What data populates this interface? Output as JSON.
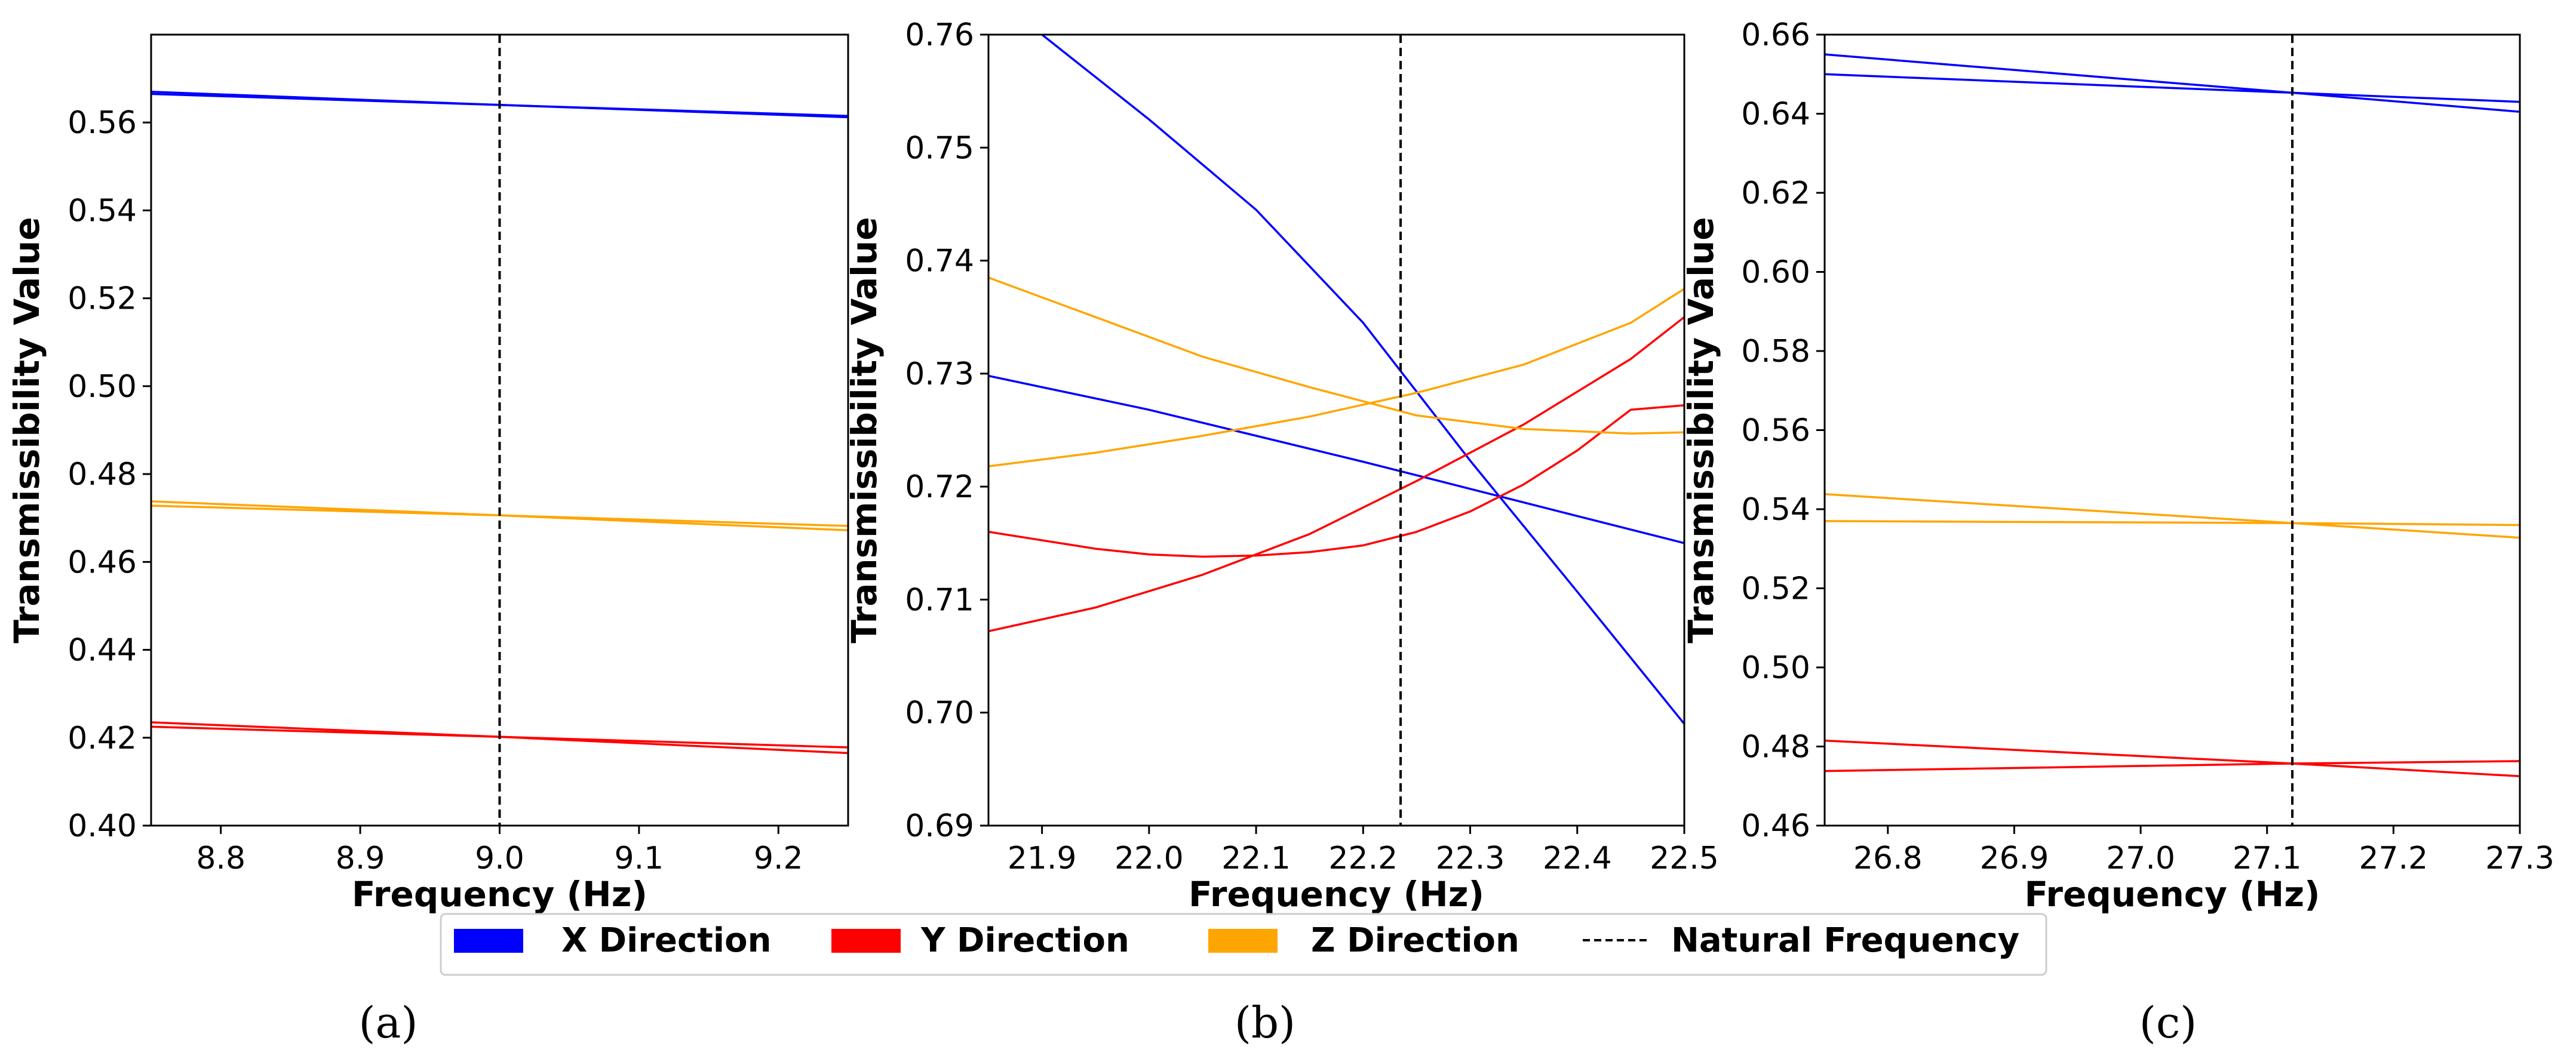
{
  "colors": {
    "x_direction": "#0000ff",
    "y_direction": "#ff0000",
    "z_direction": "#ffa500",
    "natural_frequency": "#000000"
  },
  "legend": {
    "items": [
      {
        "label": "X Direction",
        "color": "#0000ff",
        "style": "patch"
      },
      {
        "label": "Y Direction",
        "color": "#ff0000",
        "style": "patch"
      },
      {
        "label": "Z Direction",
        "color": "#ffa500",
        "style": "patch"
      },
      {
        "label": "Natural Frequency",
        "color": "#000000",
        "style": "dashed"
      }
    ]
  },
  "chart_data": [
    {
      "type": "line",
      "panel_label": "(a)",
      "xlabel": "Frequency (Hz)",
      "ylabel": "Transmissibility Value",
      "xlim": [
        8.75,
        9.25
      ],
      "ylim": [
        0.4,
        0.58
      ],
      "xticks": [
        8.8,
        8.9,
        9.0,
        9.1,
        9.2
      ],
      "xtick_labels": [
        "8.8",
        "8.9",
        "9.0",
        "9.1",
        "9.2"
      ],
      "yticks": [
        0.4,
        0.42,
        0.44,
        0.46,
        0.48,
        0.5,
        0.52,
        0.54,
        0.56
      ],
      "ytick_labels": [
        "0.40",
        "0.42",
        "0.44",
        "0.46",
        "0.48",
        "0.50",
        "0.52",
        "0.54",
        "0.56"
      ],
      "natural_frequency": 9.0,
      "series": [
        {
          "name": "X Direction",
          "color": "#0000ff",
          "x": [
            8.75,
            9.0,
            9.25
          ],
          "values": [
            0.5665,
            0.564,
            0.5612
          ]
        },
        {
          "name": "X Direction",
          "color": "#0000ff",
          "x": [
            8.75,
            9.0,
            9.25
          ],
          "values": [
            0.567,
            0.564,
            0.5615
          ]
        },
        {
          "name": "Y Direction",
          "color": "#ff0000",
          "x": [
            8.75,
            9.0,
            9.25
          ],
          "values": [
            0.4225,
            0.4202,
            0.4178
          ]
        },
        {
          "name": "Y Direction",
          "color": "#ff0000",
          "x": [
            8.75,
            9.0,
            9.25
          ],
          "values": [
            0.4235,
            0.4202,
            0.4165
          ]
        },
        {
          "name": "Z Direction",
          "color": "#ffa500",
          "x": [
            8.75,
            9.0,
            9.25
          ],
          "values": [
            0.4728,
            0.4706,
            0.4682
          ]
        },
        {
          "name": "Z Direction",
          "color": "#ffa500",
          "x": [
            8.75,
            9.0,
            9.25
          ],
          "values": [
            0.4738,
            0.4706,
            0.4672
          ]
        }
      ]
    },
    {
      "type": "line",
      "panel_label": "(b)",
      "xlabel": "Frequency (Hz)",
      "ylabel": "Transmissibility Value",
      "xlim": [
        21.85,
        22.5
      ],
      "ylim": [
        0.69,
        0.76
      ],
      "xticks": [
        21.9,
        22.0,
        22.1,
        22.2,
        22.3,
        22.4,
        22.5
      ],
      "xtick_labels": [
        "21.9",
        "22.0",
        "22.1",
        "22.2",
        "22.3",
        "22.4",
        "22.5"
      ],
      "yticks": [
        0.69,
        0.7,
        0.71,
        0.72,
        0.73,
        0.74,
        0.75,
        0.76
      ],
      "ytick_labels": [
        "0.69",
        "0.70",
        "0.71",
        "0.72",
        "0.73",
        "0.74",
        "0.75",
        "0.76"
      ],
      "natural_frequency": 22.235,
      "series": [
        {
          "name": "X Direction",
          "color": "#0000ff",
          "x": [
            21.9,
            22.0,
            22.1,
            22.2,
            22.3,
            22.4,
            22.5
          ],
          "values": [
            0.76,
            0.7525,
            0.7445,
            0.7345,
            0.7223,
            0.7107,
            0.699
          ]
        },
        {
          "name": "X Direction",
          "color": "#0000ff",
          "x": [
            21.85,
            22.0,
            22.1,
            22.2,
            22.3,
            22.4,
            22.5
          ],
          "values": [
            0.7298,
            0.7268,
            0.7245,
            0.7222,
            0.7198,
            0.7174,
            0.715
          ]
        },
        {
          "name": "Y Direction",
          "color": "#ff0000",
          "x": [
            21.85,
            21.95,
            22.0,
            22.05,
            22.1,
            22.15,
            22.2,
            22.25,
            22.3,
            22.35,
            22.4,
            22.45,
            22.5
          ],
          "values": [
            0.716,
            0.7145,
            0.714,
            0.7138,
            0.7139,
            0.7142,
            0.7148,
            0.716,
            0.7178,
            0.7202,
            0.7232,
            0.7268,
            0.7272
          ]
        },
        {
          "name": "Y Direction",
          "color": "#ff0000",
          "x": [
            21.85,
            21.95,
            22.05,
            22.15,
            22.25,
            22.35,
            22.45,
            22.5
          ],
          "values": [
            0.7072,
            0.7093,
            0.7122,
            0.7158,
            0.7205,
            0.7255,
            0.7313,
            0.735
          ]
        },
        {
          "name": "Z Direction",
          "color": "#ffa500",
          "x": [
            21.85,
            21.95,
            22.05,
            22.15,
            22.25,
            22.35,
            22.45,
            22.5
          ],
          "values": [
            0.7385,
            0.735,
            0.7315,
            0.7288,
            0.7263,
            0.7251,
            0.7247,
            0.7248
          ]
        },
        {
          "name": "Z Direction",
          "color": "#ffa500",
          "x": [
            21.85,
            21.95,
            22.05,
            22.15,
            22.25,
            22.35,
            22.45,
            22.5
          ],
          "values": [
            0.7218,
            0.723,
            0.7245,
            0.7262,
            0.7283,
            0.7308,
            0.7345,
            0.7375
          ]
        }
      ]
    },
    {
      "type": "line",
      "panel_label": "(c)",
      "xlabel": "Frequency (Hz)",
      "ylabel": "Transmissibility Value",
      "xlim": [
        26.75,
        27.3
      ],
      "ylim": [
        0.46,
        0.66
      ],
      "xticks": [
        26.8,
        26.9,
        27.0,
        27.1,
        27.2,
        27.3
      ],
      "xtick_labels": [
        "26.8",
        "26.9",
        "27.0",
        "27.1",
        "27.2",
        "27.3"
      ],
      "yticks": [
        0.46,
        0.48,
        0.5,
        0.52,
        0.54,
        0.56,
        0.58,
        0.6,
        0.62,
        0.64,
        0.66
      ],
      "ytick_labels": [
        "0.46",
        "0.48",
        "0.50",
        "0.52",
        "0.54",
        "0.56",
        "0.58",
        "0.60",
        "0.62",
        "0.64",
        "0.66"
      ],
      "natural_frequency": 27.12,
      "series": [
        {
          "name": "X Direction",
          "color": "#0000ff",
          "x": [
            26.75,
            27.12,
            27.3
          ],
          "values": [
            0.655,
            0.6453,
            0.6405
          ]
        },
        {
          "name": "X Direction",
          "color": "#0000ff",
          "x": [
            26.75,
            27.12,
            27.3
          ],
          "values": [
            0.65,
            0.6453,
            0.643
          ]
        },
        {
          "name": "Y Direction",
          "color": "#ff0000",
          "x": [
            26.75,
            27.12,
            27.3
          ],
          "values": [
            0.4815,
            0.4757,
            0.4725
          ]
        },
        {
          "name": "Y Direction",
          "color": "#ff0000",
          "x": [
            26.75,
            27.12,
            27.3
          ],
          "values": [
            0.4738,
            0.4757,
            0.4763
          ]
        },
        {
          "name": "Z Direction",
          "color": "#ffa500",
          "x": [
            26.75,
            27.12,
            27.3
          ],
          "values": [
            0.5438,
            0.5365,
            0.5328
          ]
        },
        {
          "name": "Z Direction",
          "color": "#ffa500",
          "x": [
            26.75,
            27.12,
            27.3
          ],
          "values": [
            0.537,
            0.5365,
            0.536
          ]
        }
      ]
    }
  ]
}
